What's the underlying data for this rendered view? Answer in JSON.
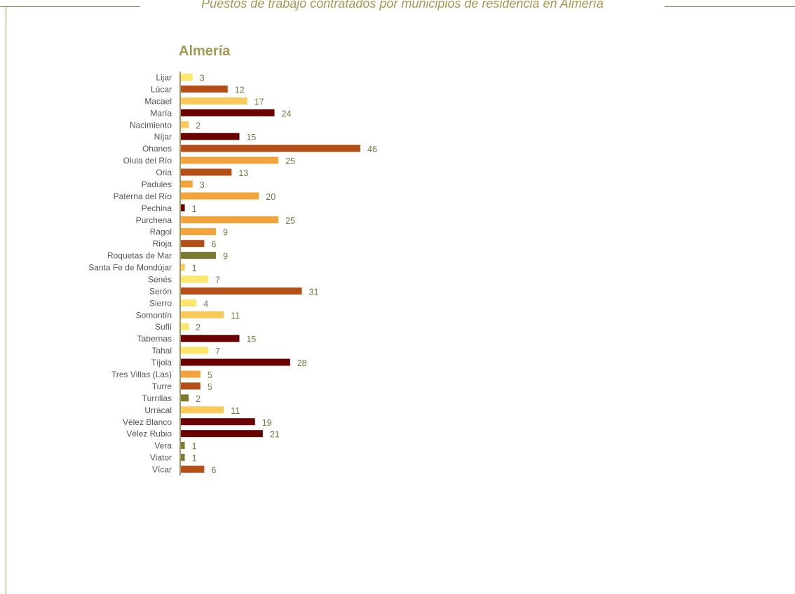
{
  "header": {
    "title": "Puestos de trabajo contratados por municipios de residencia en Almería"
  },
  "colors": {
    "frame": "#8c8c4a",
    "title": "#a39a52",
    "label": "#555555",
    "value": "#777744"
  },
  "chart_data": {
    "type": "bar",
    "orientation": "horizontal",
    "title": "Almería",
    "categories": [
      "Lijar",
      "Lúcar",
      "Macael",
      "María",
      "Nacimiento",
      "Níjar",
      "Ohanes",
      "Olula del Río",
      "Oria",
      "Padules",
      "Paterna del Río",
      "Pechina",
      "Purchena",
      "Rágol",
      "Rioja",
      "Roquetas de Mar",
      "Santa Fe de Mondújar",
      "Senés",
      "Serón",
      "Sierro",
      "Somontín",
      "Suflí",
      "Tabernas",
      "Tahal",
      "Tíjola",
      "Tres Villas (Las)",
      "Turre",
      "Turrillas",
      "Urrácal",
      "Vélez Blanco",
      "Vélez Rubio",
      "Vera",
      "Viator",
      "Vícar"
    ],
    "values": [
      3,
      12,
      17,
      24,
      2,
      15,
      46,
      25,
      13,
      3,
      20,
      1,
      25,
      9,
      6,
      9,
      1,
      7,
      31,
      4,
      11,
      2,
      15,
      7,
      28,
      5,
      5,
      2,
      11,
      19,
      21,
      1,
      1,
      6
    ],
    "bar_colors": [
      "#fde66a",
      "#b34f17",
      "#f9c95a",
      "#6b0000",
      "#f9c95a",
      "#6b0000",
      "#b34f17",
      "#f2a33a",
      "#b34f17",
      "#f2a33a",
      "#f2a33a",
      "#6b0000",
      "#f2a33a",
      "#f2a33a",
      "#b34f17",
      "#7a7a32",
      "#f9c95a",
      "#fde66a",
      "#b34f17",
      "#fde66a",
      "#f9c95a",
      "#fde66a",
      "#6b0000",
      "#fde66a",
      "#6b0000",
      "#f2a33a",
      "#b34f17",
      "#7a7a32",
      "#f9c95a",
      "#6b0000",
      "#6b0000",
      "#7a7a32",
      "#7a7a32",
      "#b34f17"
    ],
    "xlim": [
      0,
      46
    ],
    "grid": false,
    "legend": "none"
  }
}
